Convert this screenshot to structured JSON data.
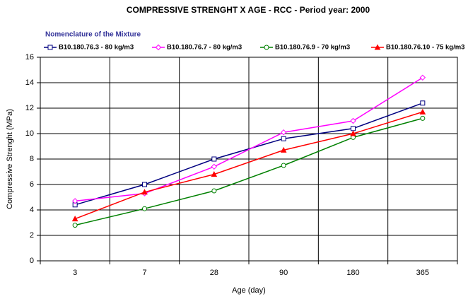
{
  "chart_data": {
    "type": "line",
    "title": "COMPRESSIVE STRENGHT X AGE - RCC - Period year: 2000",
    "legend_title": "Nomenclature of the Mixture",
    "x_label": "Age (day)",
    "y_label": "Compressive Strenght (MPa)",
    "categories": [
      "3",
      "7",
      "28",
      "90",
      "180",
      "365"
    ],
    "series": [
      {
        "name": "B10.180.76.3 - 80 kg/m3",
        "color": "#000080",
        "marker": "square",
        "values": [
          4.4,
          6.0,
          8.0,
          9.6,
          10.4,
          12.4
        ]
      },
      {
        "name": "B10.180.76.7 - 80 kg/m3",
        "color": "#ff00ff",
        "marker": "diamond",
        "values": [
          4.7,
          5.3,
          7.4,
          10.1,
          11.0,
          14.4
        ]
      },
      {
        "name": "B10.180.76.9 - 70 kg/m3",
        "color": "#008000",
        "marker": "circle",
        "values": [
          2.8,
          4.1,
          5.5,
          7.5,
          9.7,
          11.2
        ]
      },
      {
        "name": "B10.180.76.10 - 75 kg/m3",
        "color": "#ff0000",
        "marker": "triangle",
        "values": [
          3.3,
          5.4,
          6.8,
          8.7,
          10.0,
          11.7
        ]
      }
    ],
    "ylim": [
      0,
      16
    ],
    "yticks": [
      0,
      2,
      4,
      6,
      8,
      10,
      12,
      14,
      16
    ],
    "grid": true
  }
}
